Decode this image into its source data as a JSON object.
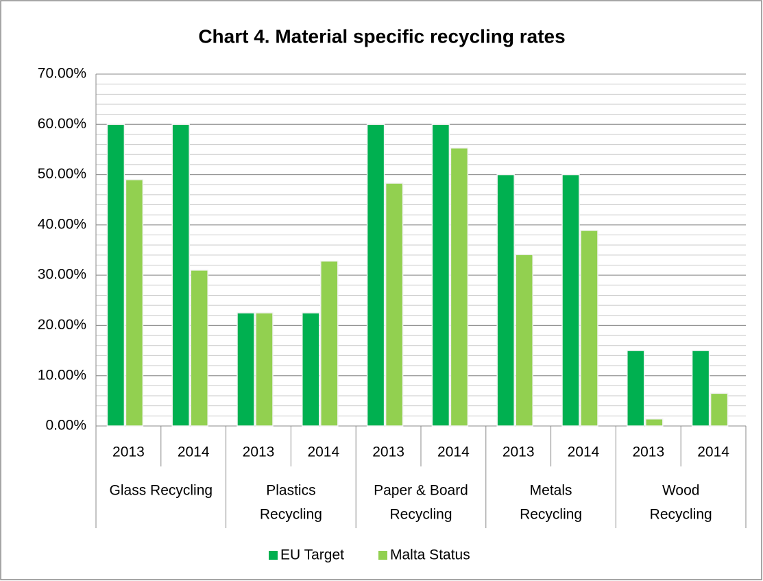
{
  "chart_data": {
    "type": "bar",
    "title": "Chart 4. Material specific recycling rates",
    "categories": [
      "2013",
      "2014",
      "2013",
      "2014",
      "2013",
      "2014",
      "2013",
      "2014",
      "2013",
      "2014"
    ],
    "groups": [
      {
        "lines": [
          "Glass Recycling"
        ],
        "span": 2
      },
      {
        "lines": [
          "Plastics",
          "Recycling"
        ],
        "span": 2
      },
      {
        "lines": [
          "Paper & Board",
          "Recycling"
        ],
        "span": 2
      },
      {
        "lines": [
          "Metals",
          "Recycling"
        ],
        "span": 2
      },
      {
        "lines": [
          "Wood",
          "Recycling"
        ],
        "span": 2
      }
    ],
    "series": [
      {
        "name": "EU Target",
        "color": "#00b050",
        "values": [
          60,
          60,
          22.5,
          22.5,
          60,
          60,
          50,
          50,
          15,
          15
        ]
      },
      {
        "name": "Malta Status",
        "color": "#92d050",
        "values": [
          49,
          31,
          22.5,
          32.8,
          48.3,
          55.3,
          34.1,
          38.9,
          1.4,
          6.5
        ]
      }
    ],
    "ylim": [
      0,
      70
    ],
    "yticks": [
      {
        "value": 0,
        "label": "0.00%"
      },
      {
        "value": 10,
        "label": "10.00%"
      },
      {
        "value": 20,
        "label": "20.00%"
      },
      {
        "value": 30,
        "label": "30.00%"
      },
      {
        "value": 40,
        "label": "40.00%"
      },
      {
        "value": 50,
        "label": "50.00%"
      },
      {
        "value": 60,
        "label": "60.00%"
      },
      {
        "value": 70,
        "label": "70.00%"
      }
    ],
    "yminor_step": 2,
    "grid": true,
    "legend": "bottom"
  }
}
